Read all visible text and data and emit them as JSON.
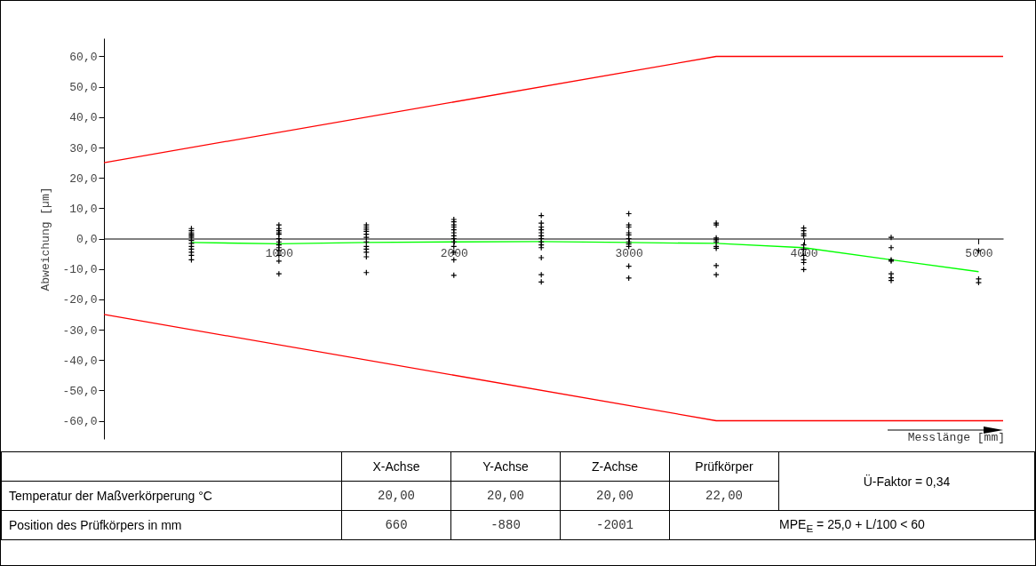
{
  "chart_data": {
    "type": "scatter",
    "ylabel": "Abweichung   [µm]",
    "xlabel": "Messlänge [mm]",
    "xlim": [
      0,
      5140
    ],
    "ylim": [
      -66,
      66
    ],
    "xticks": [
      1000,
      2000,
      3000,
      4000,
      5000
    ],
    "yticks": [
      {
        "value": -60,
        "label": "-60,0"
      },
      {
        "value": -50,
        "label": "-50,0"
      },
      {
        "value": -40,
        "label": "-40,0"
      },
      {
        "value": -30,
        "label": "-30,0"
      },
      {
        "value": -20,
        "label": "-20,0"
      },
      {
        "value": -10,
        "label": "-10,0"
      },
      {
        "value": 0,
        "label": "0,0"
      },
      {
        "value": 10,
        "label": "10,0"
      },
      {
        "value": 20,
        "label": "20,0"
      },
      {
        "value": 30,
        "label": "30,0"
      },
      {
        "value": 40,
        "label": "40,0"
      },
      {
        "value": 50,
        "label": "50,0"
      },
      {
        "value": 60,
        "label": "60,0"
      }
    ],
    "grid": false,
    "series": [
      {
        "type": "line",
        "color": "#ff0000",
        "x": [
          0,
          3500,
          5140
        ],
        "values": [
          25,
          60,
          60
        ]
      },
      {
        "type": "line",
        "color": "#ff0000",
        "x": [
          0,
          3500,
          5140
        ],
        "values": [
          -25,
          -60,
          -60
        ]
      },
      {
        "type": "line",
        "color": "#00ff00",
        "x": [
          500,
          1000,
          1500,
          2000,
          2500,
          3000,
          3500,
          4000,
          4500,
          5000
        ],
        "values": [
          -1.3,
          -1.7,
          -1.3,
          -1.1,
          -1.0,
          -1.3,
          -1.6,
          -3.0,
          -7.0,
          -10.9
        ]
      },
      {
        "color": "#000000",
        "marker": "cross",
        "x": [
          500,
          500,
          500,
          500,
          500,
          500,
          500,
          500,
          500,
          500,
          500,
          500,
          500,
          1000,
          1000,
          1000,
          1000,
          1000,
          1000,
          1000,
          1000,
          1000,
          1000,
          1000,
          1000,
          1000,
          1500,
          1500,
          1500,
          1500,
          1500,
          1500,
          1500,
          1500,
          1500,
          1500,
          1500,
          1500,
          2000,
          2000,
          2000,
          2000,
          2000,
          2000,
          2000,
          2000,
          2000,
          2000,
          2000,
          2000,
          2000,
          2500,
          2500,
          2500,
          2500,
          2500,
          2500,
          2500,
          2500,
          2500,
          2500,
          2500,
          2500,
          2500,
          3000,
          3000,
          3000,
          3000,
          3000,
          3000,
          3000,
          3000,
          3000,
          3000,
          3000,
          3500,
          3500,
          3500,
          3500,
          3500,
          3500,
          3500,
          3500,
          3500,
          4000,
          4000,
          4000,
          4000,
          4000,
          4000,
          4000,
          4000,
          4000,
          4000,
          4500,
          4500,
          4500,
          4500,
          4500,
          4500,
          4500,
          5000,
          5000,
          5000
        ],
        "values": [
          3.3,
          2.6,
          1.9,
          1.4,
          0.9,
          0.4,
          -0.6,
          -1.6,
          -2.6,
          -3.5,
          -4.5,
          -5.5,
          -7.0,
          4.5,
          3.3,
          2.6,
          1.9,
          1.4,
          0,
          -1.1,
          -2.1,
          -3.0,
          -4.0,
          -5.5,
          -7.4,
          -11.6,
          4.5,
          3.8,
          3.1,
          2.4,
          1.4,
          0.4,
          -1.1,
          -2.6,
          -3.5,
          -4.5,
          -6.0,
          -11.2,
          6.3,
          5.5,
          4.5,
          3.8,
          2.9,
          1.9,
          0.9,
          0,
          -1.1,
          -2.6,
          -4.5,
          -7.0,
          -12.1,
          7.6,
          5.1,
          3.8,
          2.9,
          1.9,
          0.9,
          0,
          -1.1,
          -2.1,
          -3.0,
          -6.3,
          -11.9,
          -14.3,
          8.2,
          4.5,
          3.8,
          1.9,
          1.2,
          0,
          -1.1,
          -1.8,
          -2.6,
          -9.1,
          -13.0,
          5.1,
          4.5,
          0.2,
          -0.4,
          -1.1,
          -2.6,
          -3.2,
          -8.9,
          -11.9,
          3.5,
          2.6,
          1.6,
          0.9,
          -2.1,
          -3.5,
          -5.5,
          -7.0,
          -7.9,
          -10.2,
          0.4,
          -3.0,
          -7.0,
          -7.4,
          -11.6,
          -12.9,
          -13.8,
          -4.0,
          -13.3,
          -14.5
        ]
      }
    ],
    "annotations": [
      "X-Achse",
      "Y-Achse",
      "Z-Achse",
      "Prüfkörper",
      "Ü-Faktor = 0,34",
      "Temperatur der Maßverkörperung °C",
      "20,00",
      "20,00",
      "20,00",
      "22,00",
      "Position des Prüfkörpers in mm",
      "660",
      "-880",
      "-2001",
      "MPE$_{E}$ = 25,0 + L/100 < 60"
    ]
  }
}
